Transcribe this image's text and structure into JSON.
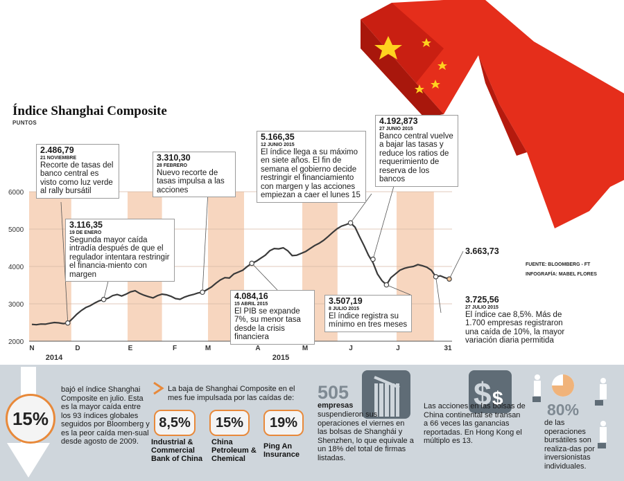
{
  "title": "Índice Shanghai Composite",
  "subtitle": "PUNTOS",
  "source": "FUENTE: BLOOMBERG - FT",
  "infografia": "INFOGRAFÍA: MABEL FLORES",
  "colors": {
    "band": "#f7d6bf",
    "line": "#3a3a3a",
    "accent": "#e8893a",
    "arrow_red": "#e52e1b",
    "panel": "#cfd6dc"
  },
  "chart_data": {
    "type": "line",
    "title": "Índice Shanghai Composite",
    "ylabel": "PUNTOS",
    "ylim": [
      2000,
      6000
    ],
    "yticks": [
      2000,
      3000,
      4000,
      5000,
      6000
    ],
    "month_labels": [
      "N",
      "D",
      "E",
      "F",
      "M",
      "A",
      "M",
      "J",
      "J",
      "31"
    ],
    "year_labels": [
      "2014",
      "2015"
    ],
    "grid": true,
    "series": [
      {
        "values": [
          2450,
          2440,
          2460,
          2455,
          2480,
          2500,
          2490,
          2470,
          2486,
          2600,
          2720,
          2820,
          2900,
          2950,
          3020,
          3080,
          3116,
          3150,
          3220,
          3250,
          3210,
          3260,
          3320,
          3350,
          3280,
          3230,
          3190,
          3160,
          3220,
          3260,
          3240,
          3200,
          3140,
          3120,
          3180,
          3220,
          3250,
          3290,
          3310,
          3380,
          3450,
          3550,
          3640,
          3700,
          3690,
          3800,
          3850,
          3900,
          4000,
          4084,
          4140,
          4220,
          4300,
          4420,
          4480,
          4470,
          4500,
          4420,
          4290,
          4300,
          4350,
          4400,
          4480,
          4560,
          4620,
          4700,
          4800,
          4910,
          5010,
          5080,
          5120,
          5166,
          5050,
          4800,
          4560,
          4300,
          4100,
          3800,
          3620,
          3507,
          3700,
          3800,
          3900,
          3950,
          3980,
          4000,
          4050,
          4020,
          3980,
          3900,
          3726,
          3750,
          3700,
          3664
        ]
      }
    ],
    "annotations_points": [
      {
        "label": "2.486,79",
        "value": 2486.79
      },
      {
        "label": "3.116,35",
        "value": 3116.35
      },
      {
        "label": "3.310,30",
        "value": 3310.3
      },
      {
        "label": "4.084,16",
        "value": 4084.16
      },
      {
        "label": "5.166,35",
        "value": 5166.35
      },
      {
        "label": "4.192,873",
        "value": 4192.873
      },
      {
        "label": "3.507,19",
        "value": 3507.19
      },
      {
        "label": "3.725,56",
        "value": 3725.56
      },
      {
        "label": "3.663,73",
        "value": 3663.73
      }
    ]
  },
  "annotations": {
    "a1": {
      "value": "2.486,79",
      "date": "21 NOVIEMBRE",
      "text": "Recorte de tasas del banco central es visto como luz verde al rally bursátil"
    },
    "a2": {
      "value": "3.116,35",
      "date": "19 DE ENERO",
      "text": "Segunda mayor caída intradía después de que el regulador intentara restringir el financia-miento con margen"
    },
    "a3": {
      "value": "3.310,30",
      "date": "28 FEBRERO",
      "text": "Nuevo recorte de tasas impulsa a las acciones"
    },
    "a4": {
      "value": "4.084,16",
      "date": "15 ABRIL 2015",
      "text": "El PIB se expande 7%, su menor tasa desde la crisis financiera"
    },
    "a5": {
      "value": "5.166,35",
      "date": "12 JUNIO 2015",
      "text": "El índice llega a su máximo en siete años. El fin de semana el gobierno decide restringir el financiamiento con margen y las acciones empiezan a caer el lunes 15"
    },
    "a6": {
      "value": "4.192,873",
      "date": "27 JUNIO 2015",
      "text": "Banco central vuelve a bajar las tasas y reduce los ratios de requerimiento de reserva de los bancos"
    },
    "a7": {
      "value": "3.507,19",
      "date": "8 JULIO 2015",
      "text": "El índice registra su mínimo en tres meses"
    },
    "a8": {
      "value": "3.725,56",
      "date": "27 JULIO 2015",
      "text": "El índice cae 8,5%. Más de 1.700 empresas registraron una caída de 10%, la mayor variación diaria permitida"
    },
    "last": "3.663,73"
  },
  "panel": {
    "pct": "15%",
    "pct_text": "bajó el índice Shanghai Composite en julio. Esta es la mayor caída entre los 93 índices globales seguidos por Bloomberg y es la peor caída men-sual desde agosto de 2009.",
    "drop_text": "La baja de Shanghai Composite en el mes fue impulsada por las caídas de:",
    "pills": [
      {
        "value": "8,5%",
        "label": "Industrial & Commercial Bank of China"
      },
      {
        "value": "15%",
        "label": "China Petroleum & Chemical"
      },
      {
        "value": "19%",
        "label": "Ping An Insurance"
      }
    ],
    "n505": "505",
    "n505_bold": "empresas",
    "n505_text": "suspendieron sus operaciones el viernes en las bolsas de Shanghái y Shenzhen, lo que equivale a un 18% del total de firmas listadas.",
    "shares_text": "Las acciones en las bolsas de China continental se transan a 66 veces las ganancias reportadas. En Hong Kong el múltiplo es 13.",
    "pct80": "80%",
    "pct80_text": "de las operaciones bursátiles son realiza-das por inversionistas individuales."
  }
}
